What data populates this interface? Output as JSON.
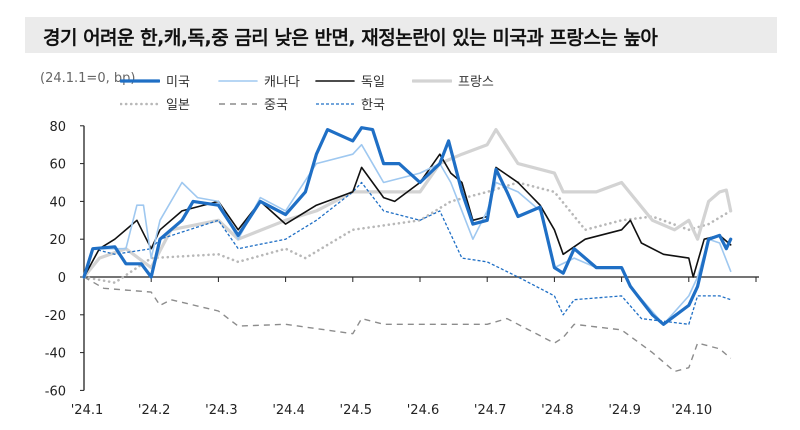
{
  "title": "경기 어려운 한,캐,독,중 금리 낮은 반면, 재정논란이 있는 미국과 프랑스는 높아",
  "chart_data": {
    "type": "line",
    "unit_note": "(24.1.1=0,  bp)",
    "ylim": [
      -60,
      80
    ],
    "yticks": [
      80,
      60,
      40,
      20,
      0,
      -20,
      -40,
      -60
    ],
    "xticks": [
      "'24.1",
      "'24.2",
      "'24.3",
      "'24.4",
      "'24.5",
      "'24.6",
      "'24.7",
      "'24.8",
      "'24.9",
      "'24.10"
    ],
    "xlim": [
      "2024-01-01",
      "2024-11-01"
    ],
    "grid": false,
    "legend_position": "top",
    "series": [
      {
        "name": "미국",
        "color": "#1f6fc5",
        "style": "thick",
        "points": [
          [
            "2024-01-01",
            0
          ],
          [
            "2024-01-05",
            15
          ],
          [
            "2024-01-15",
            16
          ],
          [
            "2024-01-20",
            7
          ],
          [
            "2024-01-27",
            7
          ],
          [
            "2024-02-01",
            0
          ],
          [
            "2024-02-05",
            20
          ],
          [
            "2024-02-15",
            30
          ],
          [
            "2024-02-20",
            40
          ],
          [
            "2024-03-01",
            38
          ],
          [
            "2024-03-10",
            22
          ],
          [
            "2024-03-20",
            40
          ],
          [
            "2024-04-01",
            33
          ],
          [
            "2024-04-10",
            45
          ],
          [
            "2024-04-15",
            65
          ],
          [
            "2024-04-20",
            78
          ],
          [
            "2024-05-01",
            72
          ],
          [
            "2024-05-05",
            79
          ],
          [
            "2024-05-10",
            78
          ],
          [
            "2024-05-15",
            60
          ],
          [
            "2024-05-22",
            60
          ],
          [
            "2024-06-01",
            50
          ],
          [
            "2024-06-10",
            60
          ],
          [
            "2024-06-14",
            72
          ],
          [
            "2024-06-20",
            45
          ],
          [
            "2024-06-25",
            28
          ],
          [
            "2024-07-01",
            30
          ],
          [
            "2024-07-05",
            57
          ],
          [
            "2024-07-10",
            45
          ],
          [
            "2024-07-15",
            32
          ],
          [
            "2024-07-25",
            37
          ],
          [
            "2024-08-01",
            5
          ],
          [
            "2024-08-05",
            2
          ],
          [
            "2024-08-10",
            15
          ],
          [
            "2024-08-20",
            5
          ],
          [
            "2024-09-01",
            5
          ],
          [
            "2024-09-05",
            -5
          ],
          [
            "2024-09-15",
            -20
          ],
          [
            "2024-09-20",
            -25
          ],
          [
            "2024-10-01",
            -15
          ],
          [
            "2024-10-05",
            -5
          ],
          [
            "2024-10-10",
            20
          ],
          [
            "2024-10-15",
            22
          ],
          [
            "2024-10-18",
            15
          ],
          [
            "2024-10-20",
            20
          ]
        ]
      },
      {
        "name": "캐나다",
        "color": "#9fc8f0",
        "style": "thin",
        "points": [
          [
            "2024-01-01",
            0
          ],
          [
            "2024-01-05",
            15
          ],
          [
            "2024-01-20",
            15
          ],
          [
            "2024-01-25",
            38
          ],
          [
            "2024-01-28",
            38
          ],
          [
            "2024-02-01",
            10
          ],
          [
            "2024-02-05",
            30
          ],
          [
            "2024-02-15",
            50
          ],
          [
            "2024-02-22",
            42
          ],
          [
            "2024-03-01",
            40
          ],
          [
            "2024-03-10",
            20
          ],
          [
            "2024-03-20",
            42
          ],
          [
            "2024-04-01",
            35
          ],
          [
            "2024-04-15",
            60
          ],
          [
            "2024-05-01",
            65
          ],
          [
            "2024-05-05",
            70
          ],
          [
            "2024-05-15",
            50
          ],
          [
            "2024-06-01",
            55
          ],
          [
            "2024-06-10",
            60
          ],
          [
            "2024-06-15",
            50
          ],
          [
            "2024-06-20",
            35
          ],
          [
            "2024-06-25",
            20
          ],
          [
            "2024-07-01",
            35
          ],
          [
            "2024-07-05",
            50
          ],
          [
            "2024-07-15",
            45
          ],
          [
            "2024-07-25",
            35
          ],
          [
            "2024-08-01",
            5
          ],
          [
            "2024-08-10",
            10
          ],
          [
            "2024-08-20",
            5
          ],
          [
            "2024-09-01",
            5
          ],
          [
            "2024-09-05",
            -5
          ],
          [
            "2024-09-20",
            -25
          ],
          [
            "2024-10-01",
            -10
          ],
          [
            "2024-10-05",
            0
          ],
          [
            "2024-10-10",
            20
          ],
          [
            "2024-10-15",
            18
          ],
          [
            "2024-10-20",
            3
          ]
        ]
      },
      {
        "name": "독일",
        "color": "#111111",
        "style": "thin",
        "points": [
          [
            "2024-01-01",
            0
          ],
          [
            "2024-01-08",
            15
          ],
          [
            "2024-01-15",
            20
          ],
          [
            "2024-01-25",
            30
          ],
          [
            "2024-02-01",
            15
          ],
          [
            "2024-02-05",
            25
          ],
          [
            "2024-02-15",
            35
          ],
          [
            "2024-03-01",
            40
          ],
          [
            "2024-03-10",
            25
          ],
          [
            "2024-03-20",
            40
          ],
          [
            "2024-04-01",
            28
          ],
          [
            "2024-04-15",
            38
          ],
          [
            "2024-05-01",
            45
          ],
          [
            "2024-05-05",
            58
          ],
          [
            "2024-05-15",
            42
          ],
          [
            "2024-05-20",
            40
          ],
          [
            "2024-06-01",
            50
          ],
          [
            "2024-06-10",
            65
          ],
          [
            "2024-06-15",
            55
          ],
          [
            "2024-06-20",
            50
          ],
          [
            "2024-06-25",
            30
          ],
          [
            "2024-07-01",
            32
          ],
          [
            "2024-07-05",
            58
          ],
          [
            "2024-07-15",
            50
          ],
          [
            "2024-07-25",
            38
          ],
          [
            "2024-08-01",
            25
          ],
          [
            "2024-08-05",
            12
          ],
          [
            "2024-08-15",
            20
          ],
          [
            "2024-09-01",
            25
          ],
          [
            "2024-09-05",
            30
          ],
          [
            "2024-09-10",
            18
          ],
          [
            "2024-09-20",
            12
          ],
          [
            "2024-10-01",
            10
          ],
          [
            "2024-10-03",
            0
          ],
          [
            "2024-10-08",
            20
          ],
          [
            "2024-10-15",
            22
          ],
          [
            "2024-10-20",
            17
          ]
        ]
      },
      {
        "name": "프랑스",
        "color": "#d3d3d3",
        "style": "thick",
        "points": [
          [
            "2024-01-01",
            0
          ],
          [
            "2024-01-08",
            10
          ],
          [
            "2024-01-20",
            15
          ],
          [
            "2024-02-01",
            5
          ],
          [
            "2024-02-10",
            25
          ],
          [
            "2024-03-01",
            30
          ],
          [
            "2024-03-10",
            20
          ],
          [
            "2024-04-01",
            30
          ],
          [
            "2024-04-15",
            35
          ],
          [
            "2024-05-01",
            45
          ],
          [
            "2024-05-15",
            45
          ],
          [
            "2024-06-01",
            45
          ],
          [
            "2024-06-10",
            60
          ],
          [
            "2024-06-20",
            65
          ],
          [
            "2024-07-01",
            70
          ],
          [
            "2024-07-05",
            78
          ],
          [
            "2024-07-15",
            60
          ],
          [
            "2024-08-01",
            55
          ],
          [
            "2024-08-05",
            45
          ],
          [
            "2024-08-20",
            45
          ],
          [
            "2024-09-01",
            50
          ],
          [
            "2024-09-15",
            30
          ],
          [
            "2024-09-25",
            25
          ],
          [
            "2024-10-01",
            30
          ],
          [
            "2024-10-05",
            20
          ],
          [
            "2024-10-10",
            40
          ],
          [
            "2024-10-15",
            45
          ],
          [
            "2024-10-18",
            46
          ],
          [
            "2024-10-20",
            35
          ]
        ]
      },
      {
        "name": "일본",
        "color": "#b8b8b8",
        "style": "dotted",
        "points": [
          [
            "2024-01-01",
            0
          ],
          [
            "2024-01-15",
            -3
          ],
          [
            "2024-02-01",
            10
          ],
          [
            "2024-03-01",
            12
          ],
          [
            "2024-03-10",
            8
          ],
          [
            "2024-04-01",
            15
          ],
          [
            "2024-04-10",
            10
          ],
          [
            "2024-05-01",
            25
          ],
          [
            "2024-06-01",
            30
          ],
          [
            "2024-06-15",
            40
          ],
          [
            "2024-07-01",
            45
          ],
          [
            "2024-07-15",
            50
          ],
          [
            "2024-08-01",
            45
          ],
          [
            "2024-08-15",
            25
          ],
          [
            "2024-09-01",
            30
          ],
          [
            "2024-09-15",
            32
          ],
          [
            "2024-10-01",
            25
          ],
          [
            "2024-10-10",
            28
          ],
          [
            "2024-10-20",
            35
          ]
        ]
      },
      {
        "name": "중국",
        "color": "#8c8c8c",
        "style": "dashed",
        "points": [
          [
            "2024-01-01",
            0
          ],
          [
            "2024-01-10",
            -6
          ],
          [
            "2024-02-01",
            -8
          ],
          [
            "2024-02-05",
            -15
          ],
          [
            "2024-02-10",
            -12
          ],
          [
            "2024-03-01",
            -18
          ],
          [
            "2024-03-10",
            -26
          ],
          [
            "2024-04-01",
            -25
          ],
          [
            "2024-05-01",
            -30
          ],
          [
            "2024-05-05",
            -22
          ],
          [
            "2024-05-15",
            -25
          ],
          [
            "2024-06-01",
            -25
          ],
          [
            "2024-06-15",
            -25
          ],
          [
            "2024-07-01",
            -25
          ],
          [
            "2024-07-10",
            -22
          ],
          [
            "2024-08-01",
            -35
          ],
          [
            "2024-08-05",
            -32
          ],
          [
            "2024-08-10",
            -25
          ],
          [
            "2024-09-01",
            -28
          ],
          [
            "2024-09-15",
            -40
          ],
          [
            "2024-09-25",
            -50
          ],
          [
            "2024-10-01",
            -48
          ],
          [
            "2024-10-05",
            -35
          ],
          [
            "2024-10-15",
            -38
          ],
          [
            "2024-10-20",
            -43
          ]
        ]
      },
      {
        "name": "한국",
        "color": "#1f6fc5",
        "style": "dashed-thin",
        "points": [
          [
            "2024-01-01",
            0
          ],
          [
            "2024-01-05",
            15
          ],
          [
            "2024-01-15",
            12
          ],
          [
            "2024-02-01",
            15
          ],
          [
            "2024-02-05",
            20
          ],
          [
            "2024-03-01",
            30
          ],
          [
            "2024-03-10",
            15
          ],
          [
            "2024-04-01",
            20
          ],
          [
            "2024-04-15",
            30
          ],
          [
            "2024-05-01",
            45
          ],
          [
            "2024-05-05",
            50
          ],
          [
            "2024-05-15",
            35
          ],
          [
            "2024-06-01",
            30
          ],
          [
            "2024-06-10",
            35
          ],
          [
            "2024-06-20",
            10
          ],
          [
            "2024-07-01",
            8
          ],
          [
            "2024-07-15",
            0
          ],
          [
            "2024-08-01",
            -10
          ],
          [
            "2024-08-05",
            -20
          ],
          [
            "2024-08-10",
            -12
          ],
          [
            "2024-09-01",
            -10
          ],
          [
            "2024-09-10",
            -22
          ],
          [
            "2024-10-01",
            -25
          ],
          [
            "2024-10-05",
            -10
          ],
          [
            "2024-10-15",
            -10
          ],
          [
            "2024-10-20",
            -12
          ]
        ]
      }
    ]
  }
}
